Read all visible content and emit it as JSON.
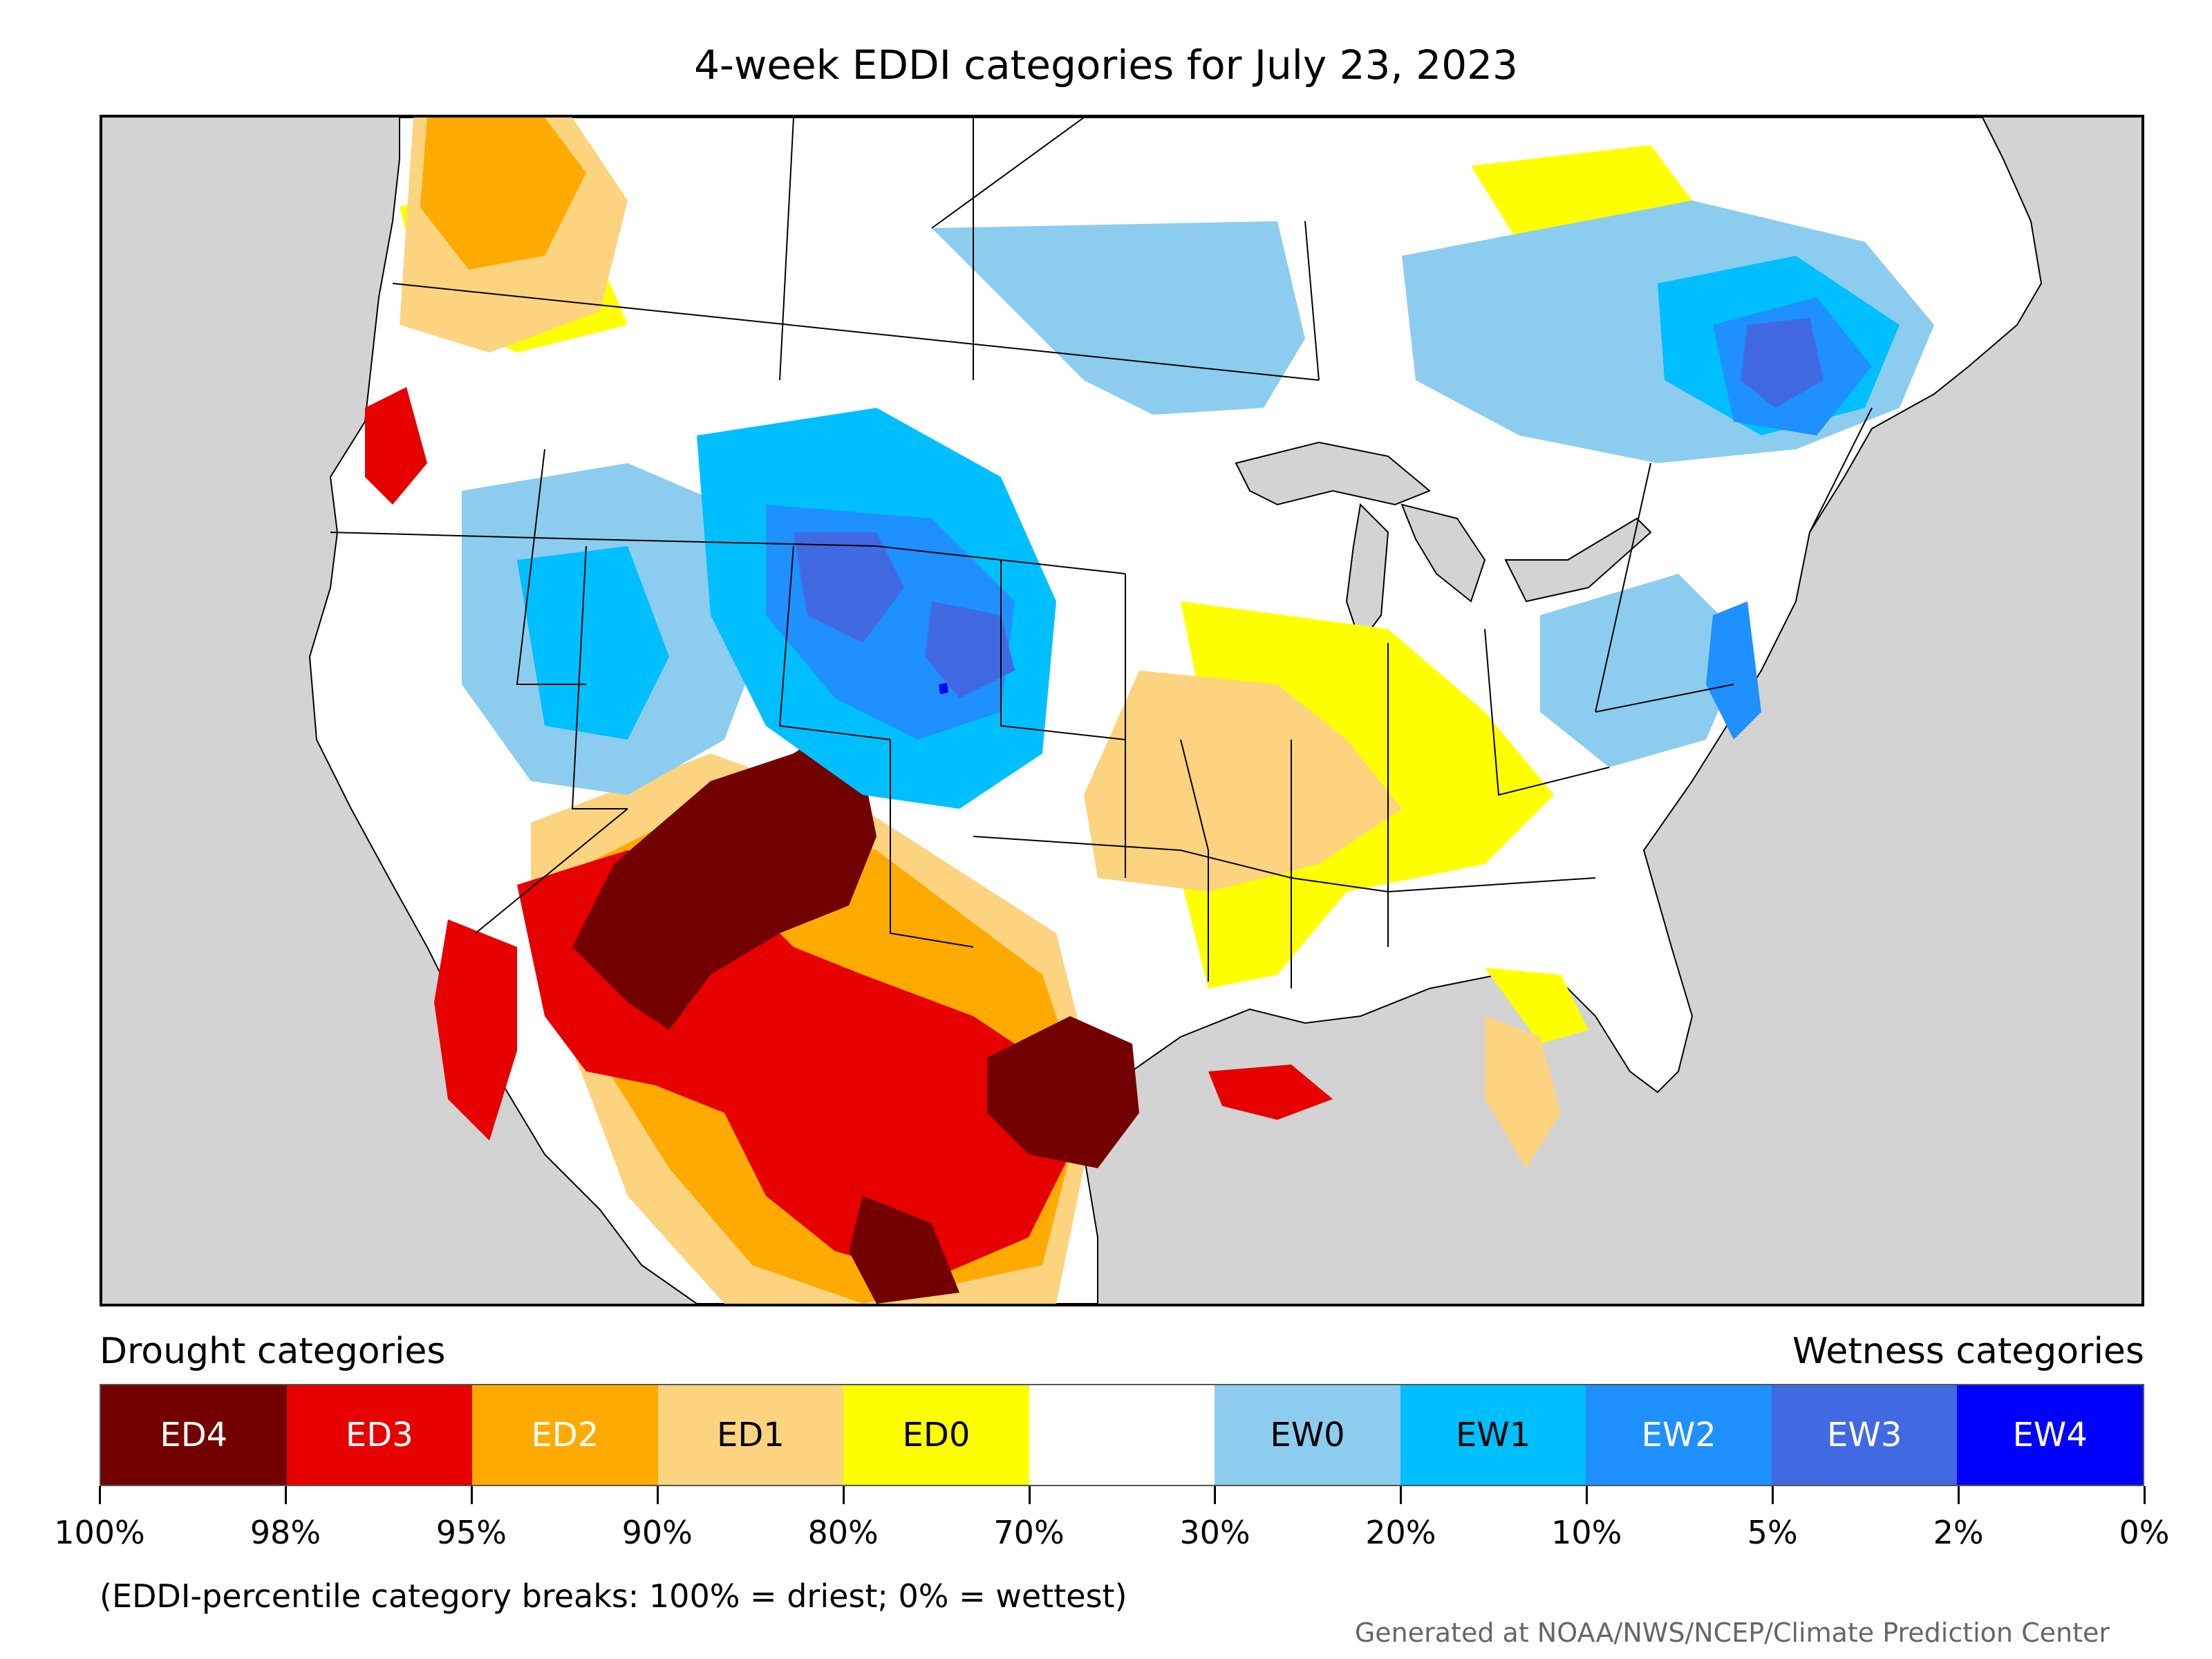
{
  "title": "4-week EDDI categories for July 23, 2023",
  "map": {
    "region": "Contiguous United States",
    "land_color": "#ffffff",
    "outside_color": "#d3d3d3",
    "regions": [
      {
        "area": "Southwest (AZ/NM/UT)",
        "category": "ED4"
      },
      {
        "area": "Central Texas",
        "category": "ED4"
      },
      {
        "area": "Northern Mexico",
        "category": "ED4"
      },
      {
        "area": "Southern California / Gulf of California",
        "category": "ED3"
      },
      {
        "area": "West Texas / Big Bend",
        "category": "ED3"
      },
      {
        "area": "Washington / Oregon coast",
        "category": "ED3"
      },
      {
        "area": "Louisiana coast",
        "category": "ED3"
      },
      {
        "area": "Southern Plains / Oklahoma-Texas",
        "category": "ED2"
      },
      {
        "area": "Pacific Northwest",
        "category": "ED2"
      },
      {
        "area": "Mid-Mississippi Valley",
        "category": "ED1"
      },
      {
        "area": "Florida peninsula",
        "category": "ED1"
      },
      {
        "area": "Ohio Valley / Southeast",
        "category": "ED0"
      },
      {
        "area": "Wyoming",
        "category": "EW3"
      },
      {
        "area": "Northeast Colorado / Nebraska panhandle",
        "category": "EW3"
      },
      {
        "area": "Quebec",
        "category": "EW3"
      },
      {
        "area": "Northern Rockies / Colorado / Kansas",
        "category": "EW1"
      },
      {
        "area": "New Jersey / Pennsylvania",
        "category": "EW2"
      },
      {
        "area": "Manitoba / Ontario",
        "category": "EW0"
      },
      {
        "area": "New England",
        "category": "EW1"
      }
    ]
  },
  "legend": {
    "left_heading": "Drought categories",
    "right_heading": "Wetness categories",
    "categories": [
      {
        "label": "ED4",
        "color": "#730000",
        "text_color": "#ffffff"
      },
      {
        "label": "ED3",
        "color": "#e60000",
        "text_color": "#ffffff"
      },
      {
        "label": "ED2",
        "color": "#ffaa00",
        "text_color": "#ffffff"
      },
      {
        "label": "ED1",
        "color": "#fcd37f",
        "text_color": "#000000"
      },
      {
        "label": "ED0",
        "color": "#ffff00",
        "text_color": "#000000"
      },
      {
        "label": "",
        "color": "#ffffff",
        "text_color": "#000000"
      },
      {
        "label": "EW0",
        "color": "#8ccdef",
        "text_color": "#000000"
      },
      {
        "label": "EW1",
        "color": "#00bfff",
        "text_color": "#000000"
      },
      {
        "label": "EW2",
        "color": "#1e90ff",
        "text_color": "#ffffff"
      },
      {
        "label": "EW3",
        "color": "#4169e1",
        "text_color": "#ffffff"
      },
      {
        "label": "EW4",
        "color": "#0000ff",
        "text_color": "#ffffff"
      }
    ],
    "breaks": [
      "100%",
      "98%",
      "95%",
      "90%",
      "80%",
      "70%",
      "30%",
      "20%",
      "10%",
      "5%",
      "2%",
      "0%"
    ]
  },
  "footnote": "(EDDI-percentile category breaks: 100% = driest; 0% = wettest)",
  "credit": "Generated at NOAA/NWS/NCEP/Climate Prediction Center"
}
